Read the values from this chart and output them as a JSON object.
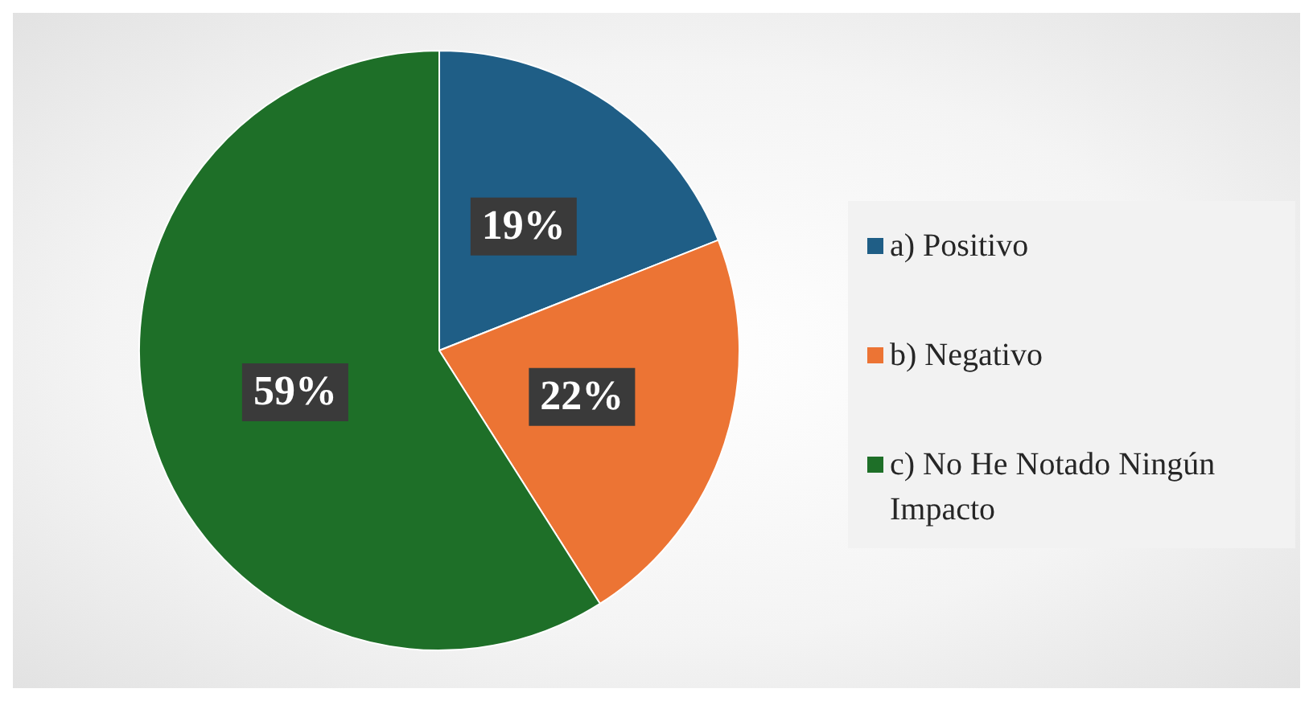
{
  "chart_data": {
    "type": "pie",
    "categories": [
      "a) Positivo",
      "b) Negativo",
      "c) No He Notado Ningún Impacto"
    ],
    "values": [
      19,
      22,
      59
    ],
    "colors": [
      "#1f5e86",
      "#ec7434",
      "#1e6f28"
    ],
    "value_labels": [
      "19%",
      "22%",
      "59%"
    ],
    "legend": "right"
  }
}
